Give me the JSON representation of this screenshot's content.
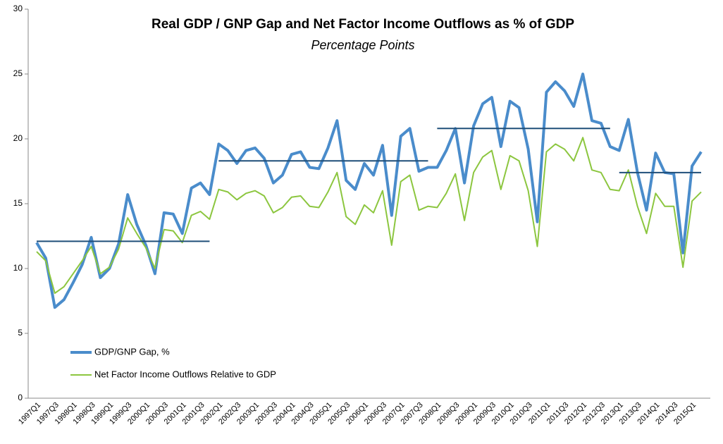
{
  "chart_data": {
    "type": "line",
    "title": "Real GDP / GNP Gap and Net Factor Income Outflows as % of GDP",
    "subtitle": "Percentage Points",
    "categories": [
      "1997Q1",
      null,
      "1997Q3",
      null,
      "1998Q1",
      null,
      "1998Q3",
      null,
      "1999Q1",
      null,
      "1999Q3",
      null,
      "2000Q1",
      null,
      "2000Q3",
      null,
      "2001Q1",
      null,
      "2001Q3",
      null,
      "2002Q1",
      null,
      "2002Q3",
      null,
      "2003Q1",
      null,
      "2003Q3",
      null,
      "2004Q1",
      null,
      "2004Q3",
      null,
      "2005Q1",
      null,
      "2005Q3",
      null,
      "2006Q1",
      null,
      "2006Q3",
      null,
      "2007Q1",
      null,
      "2007Q3",
      null,
      "2008Q1",
      null,
      "2008Q3",
      null,
      "2009Q1",
      null,
      "2009Q3",
      null,
      "2010Q1",
      null,
      "2010Q3",
      null,
      "2011Q1",
      null,
      "2011Q3",
      null,
      "2012Q1",
      null,
      "2012Q3",
      null,
      "2013Q1",
      null,
      "2013Q3",
      null,
      "2014Q1",
      null,
      "2014Q3",
      null,
      "2015Q1",
      null
    ],
    "series": [
      {
        "name": "GDP/GNP Gap, %",
        "color": "#4a8ccb",
        "width": 4,
        "values": [
          12.0,
          10.8,
          7.0,
          7.6,
          8.9,
          10.3,
          12.4,
          9.3,
          10.0,
          11.9,
          15.7,
          13.4,
          11.8,
          9.6,
          14.3,
          14.2,
          12.7,
          16.2,
          16.6,
          15.7,
          19.6,
          19.1,
          18.1,
          19.1,
          19.3,
          18.5,
          16.6,
          17.2,
          18.8,
          19.0,
          17.8,
          17.7,
          19.3,
          21.4,
          16.8,
          16.1,
          18.1,
          17.2,
          19.5,
          14.1,
          20.2,
          20.8,
          17.5,
          17.8,
          17.8,
          19.1,
          20.8,
          16.6,
          21.0,
          22.7,
          23.2,
          19.4,
          22.9,
          22.4,
          19.2,
          13.6,
          23.6,
          24.4,
          23.7,
          22.5,
          25.0,
          21.4,
          21.2,
          19.4,
          19.1,
          21.5,
          17.4,
          14.5,
          18.9,
          17.4,
          17.3,
          11.2,
          17.9,
          19.0
        ]
      },
      {
        "name": "Net Factor Income Outflows Relative to GDP",
        "color": "#8cc63f",
        "width": 2,
        "values": [
          11.3,
          10.6,
          8.1,
          8.6,
          9.6,
          10.6,
          11.7,
          9.6,
          10.1,
          11.5,
          13.9,
          12.7,
          11.6,
          10.0,
          13.0,
          12.9,
          12.0,
          14.1,
          14.4,
          13.8,
          16.1,
          15.9,
          15.3,
          15.8,
          16.0,
          15.6,
          14.3,
          14.7,
          15.5,
          15.6,
          14.8,
          14.7,
          15.9,
          17.4,
          14.0,
          13.4,
          14.9,
          14.3,
          16.0,
          11.8,
          16.7,
          17.2,
          14.5,
          14.8,
          14.7,
          15.8,
          17.3,
          13.7,
          17.4,
          18.6,
          19.1,
          16.1,
          18.7,
          18.3,
          16.0,
          11.7,
          19.0,
          19.6,
          19.2,
          18.3,
          20.1,
          17.6,
          17.4,
          16.1,
          16.0,
          17.6,
          14.8,
          12.7,
          15.8,
          14.8,
          14.8,
          10.1,
          15.2,
          15.9
        ]
      }
    ],
    "average_lines": {
      "color": "#1f4e79",
      "segments": [
        {
          "value": 12.1,
          "from_index": 0,
          "to_index": 19
        },
        {
          "value": 18.3,
          "from_index": 20,
          "to_index": 43
        },
        {
          "value": 20.8,
          "from_index": 44,
          "to_index": 63
        },
        {
          "value": 17.4,
          "from_index": 64,
          "to_index": 73
        }
      ]
    },
    "ylim": [
      0,
      30
    ],
    "yticks": [
      0,
      5,
      10,
      15,
      20,
      25,
      30
    ],
    "grid": false
  }
}
